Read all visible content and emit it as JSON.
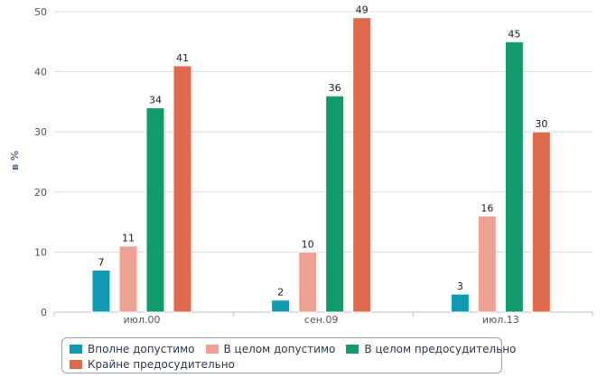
{
  "chart_data": {
    "type": "bar",
    "title": "",
    "xlabel": "",
    "ylabel": "в %",
    "ylim": [
      0,
      50
    ],
    "yticks": [
      "0",
      "10",
      "20",
      "30",
      "40",
      "50"
    ],
    "grid": true,
    "categories": [
      "июл.00",
      "сен.09",
      "июл.13"
    ],
    "series": [
      {
        "name": "Вполне допустимо",
        "color": "#0f9ab2",
        "values": [
          7,
          2,
          3
        ],
        "labels": [
          "7",
          "2",
          "3"
        ]
      },
      {
        "name": "В целом допустимо",
        "color": "#eea294",
        "values": [
          11,
          10,
          16
        ],
        "labels": [
          "11",
          "10",
          "16"
        ]
      },
      {
        "name": "В целом предосудительно",
        "color": "#129a6e",
        "values": [
          34,
          36,
          45
        ],
        "labels": [
          "34",
          "36",
          "45"
        ]
      },
      {
        "name": "Крайне предосудительно",
        "color": "#e06a4e",
        "values": [
          41,
          49,
          30
        ],
        "labels": [
          "41",
          "49",
          "30"
        ]
      }
    ],
    "legend_position": "bottom"
  },
  "colors": {
    "grid": "#d7dde2",
    "axis": "#b9c5d0",
    "tick_text": "#555555",
    "label_text": "#1a1a1a",
    "ylabel_text": "#4d6a8a"
  }
}
